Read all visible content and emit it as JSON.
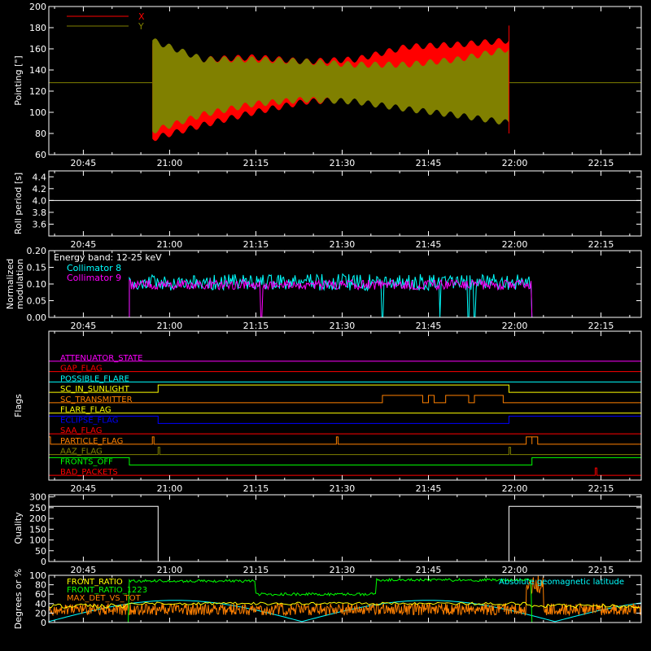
{
  "chart_data": {
    "type": "line",
    "time_ticks": [
      "20:45",
      "21:00",
      "21:15",
      "21:30",
      "21:45",
      "22:00",
      "22:15"
    ],
    "panels": [
      {
        "id": "pointing",
        "ylabel": "Pointing [\"]",
        "ylim": [
          60,
          200
        ],
        "yticks": [
          "60",
          "80",
          "100",
          "120",
          "140",
          "160",
          "180",
          "200"
        ],
        "legend": [
          {
            "label": "X",
            "color": "#ff0000"
          },
          {
            "label": "Y",
            "color": "#808000"
          }
        ],
        "flat_value": 128,
        "active_range": [
          "20:57",
          "21:59"
        ],
        "series": [
          {
            "name": "X",
            "color": "#ff0000",
            "envelope_min": [
              75,
              88,
              100,
              110,
              112,
              108,
              100,
              96
            ],
            "envelope_max": [
              165,
              150,
              152,
              148,
              150,
              162,
              164,
              168
            ]
          },
          {
            "name": "Y",
            "color": "#808000",
            "envelope_min": [
              82,
              98,
              108,
              112,
              110,
              103,
              97,
              90
            ],
            "envelope_max": [
              168,
              150,
              150,
              148,
              145,
              145,
              150,
              160
            ]
          }
        ]
      },
      {
        "id": "roll",
        "ylabel": "Roll period [s]",
        "ylim": [
          3.4,
          4.5
        ],
        "yticks": [
          "3.6",
          "3.8",
          "4.0",
          "4.2",
          "4.4"
        ],
        "value": 4.0
      },
      {
        "id": "modulation",
        "ylabel_lines": [
          "Normalized",
          "modulation"
        ],
        "ylim": [
          0,
          0.2
        ],
        "yticks": [
          "0.00",
          "0.05",
          "0.10",
          "0.15",
          "0.20"
        ],
        "annotation": "Energy band: 12-25 keV",
        "legend": [
          {
            "label": "Collimator 8",
            "color": "#00ffff"
          },
          {
            "label": "Collimator 9",
            "color": "#ff00ff"
          }
        ],
        "series": [
          {
            "name": "Collimator 8",
            "color": "#00ffff",
            "baseline": 0.1,
            "noise": 0.025,
            "active_range": [
              "20:53",
              "22:03"
            ],
            "zero_dips": [
              "21:37",
              "21:47",
              "21:52",
              "21:53"
            ]
          },
          {
            "name": "Collimator 9",
            "color": "#ff00ff",
            "baseline": 0.095,
            "noise": 0.015,
            "active_range": [
              "20:53",
              "22:03"
            ],
            "zero_dips": [
              "21:16"
            ]
          }
        ]
      },
      {
        "id": "flags",
        "ylabel": "Flags",
        "flags": [
          {
            "label": "ATTENUATOR_STATE",
            "color": "#ff00ff",
            "on_ranges": []
          },
          {
            "label": "GAP_FLAG",
            "color": "#ff0000",
            "on_ranges": []
          },
          {
            "label": "POSSIBLE_FLARE",
            "color": "#00ffff",
            "on_ranges": []
          },
          {
            "label": "SC_IN_SUNLIGHT",
            "color": "#ffff00",
            "on_ranges": [
              [
                "20:58",
                "21:59"
              ]
            ]
          },
          {
            "label": "SC_TRANSMITTER",
            "color": "#ff8000",
            "on_ranges": [
              [
                "21:37",
                "21:44"
              ],
              [
                "21:45",
                "21:46"
              ],
              [
                "21:48",
                "21:52"
              ],
              [
                "21:53",
                "21:58"
              ]
            ]
          },
          {
            "label": "FLARE_FLAG",
            "color": "#ffff00",
            "on_ranges": []
          },
          {
            "label": "ECLIPSE_FLAG",
            "color": "#0000ff",
            "on_ranges": [
              [
                "20:39",
                "20:58"
              ],
              [
                "21:59",
                "22:22"
              ]
            ]
          },
          {
            "label": "SAA_FLAG",
            "color": "#ff0000",
            "on_ranges": []
          },
          {
            "label": "PARTICLE_FLAG",
            "color": "#ff8000",
            "on_ranges": [
              [
                "20:39",
                "20:39"
              ],
              [
                "20:57",
                "20:57"
              ],
              [
                "21:29",
                "21:29"
              ],
              [
                "22:02",
                "22:03"
              ],
              [
                "22:03",
                "22:04"
              ]
            ]
          },
          {
            "label": "AAZ_FLAG",
            "color": "#808000",
            "on_ranges": [
              [
                "20:58",
                "20:58"
              ],
              [
                "21:59",
                "21:59"
              ]
            ]
          },
          {
            "label": "FRONTS_OFF",
            "color": "#00ff00",
            "on_ranges": [
              [
                "20:39",
                "20:53"
              ],
              [
                "22:03",
                "22:22"
              ]
            ]
          },
          {
            "label": "BAD_PACKETS",
            "color": "#ff0000",
            "on_ranges": [
              [
                "22:14",
                "22:14"
              ]
            ]
          }
        ]
      },
      {
        "id": "quality",
        "ylabel": "Quality",
        "ylim": [
          0,
          310
        ],
        "yticks": [
          "0",
          "50",
          "100",
          "150",
          "200",
          "250",
          "300"
        ],
        "segments": [
          {
            "range": [
              "20:39",
              "20:58"
            ],
            "value": 256
          },
          {
            "range": [
              "20:58",
              "21:59"
            ],
            "value": 0
          },
          {
            "range": [
              "21:59",
              "22:22"
            ],
            "value": 256
          }
        ]
      },
      {
        "id": "ratios",
        "ylabel": "Degrees or %",
        "ylim": [
          0,
          100
        ],
        "yticks": [
          "0",
          "20",
          "40",
          "60",
          "80",
          "100"
        ],
        "legend": [
          {
            "label": "FRONT_RATIO",
            "color": "#ffff00"
          },
          {
            "label": "FRONT_RATIO_1223",
            "color": "#00ff00"
          },
          {
            "label": "MAX_DET_VS_TOT",
            "color": "#ff8000"
          }
        ],
        "right_label": {
          "label": "Absolute geomagnetic latitude",
          "color": "#00ffff"
        }
      }
    ]
  }
}
